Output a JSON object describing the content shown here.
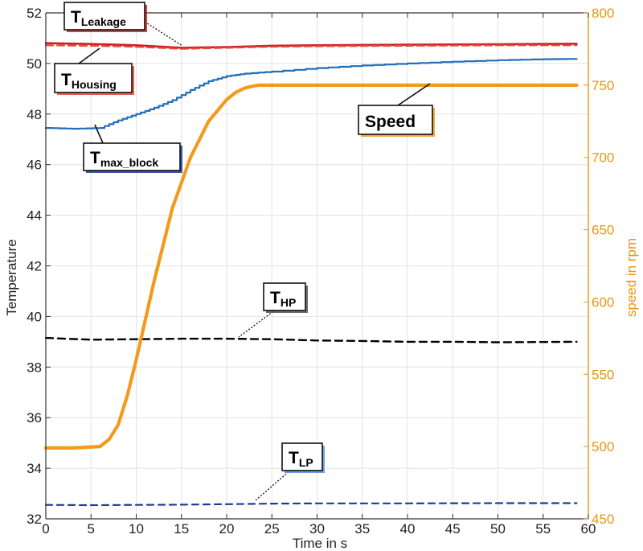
{
  "chart_data": {
    "type": "line",
    "xlabel": "Time in s",
    "ylabel": "Temperature",
    "y2label": "speed in rpm",
    "xlim": [
      0,
      60
    ],
    "ylim": [
      32,
      52
    ],
    "y2lim": [
      450,
      800
    ],
    "xticks": [
      "0",
      "5",
      "10",
      "15",
      "20",
      "25",
      "30",
      "35",
      "40",
      "45",
      "50",
      "55",
      "60"
    ],
    "yticks": [
      "32",
      "34",
      "36",
      "38",
      "40",
      "42",
      "44",
      "46",
      "48",
      "50",
      "52"
    ],
    "y2ticks": [
      "450",
      "500",
      "550",
      "600",
      "650",
      "700",
      "750",
      "800"
    ],
    "grid": true,
    "colors": {
      "leakage": "#cc1f1f",
      "housing": "#e8453c",
      "max_block": "#1f6fb8",
      "hp": "#000000",
      "lp": "#1f3a9a",
      "speed": "#f39a1c",
      "speed_axis": "#e8960f"
    },
    "series": [
      {
        "key": "leakage",
        "axis": "left",
        "style": "solid",
        "x": [
          0,
          5,
          10,
          15,
          20,
          25,
          30,
          40,
          50,
          58.7
        ],
        "y": [
          50.8,
          50.77,
          50.72,
          50.62,
          50.65,
          50.7,
          50.72,
          50.74,
          50.76,
          50.78
        ]
      },
      {
        "key": "housing",
        "axis": "left",
        "style": "dashed",
        "x": [
          0,
          5,
          10,
          15,
          20,
          25,
          30,
          40,
          50,
          58.7
        ],
        "y": [
          50.72,
          50.7,
          50.66,
          50.58,
          50.62,
          50.66,
          50.68,
          50.7,
          50.72,
          50.72
        ]
      },
      {
        "key": "max_block",
        "axis": "left",
        "style": "solid",
        "x": [
          0,
          3,
          6,
          8,
          10,
          12,
          14,
          16,
          18,
          20,
          22,
          25,
          30,
          35,
          40,
          45,
          50,
          55,
          58.7
        ],
        "y": [
          47.45,
          47.42,
          47.45,
          47.75,
          48.0,
          48.25,
          48.55,
          48.95,
          49.3,
          49.5,
          49.6,
          49.68,
          49.82,
          49.92,
          50.0,
          50.07,
          50.13,
          50.17,
          50.18
        ]
      },
      {
        "key": "hp",
        "axis": "left",
        "style": "dashed",
        "x": [
          0,
          5,
          10,
          15,
          20,
          25,
          30,
          35,
          40,
          45,
          50,
          58.7
        ],
        "y": [
          39.15,
          39.08,
          39.1,
          39.12,
          39.12,
          39.1,
          39.05,
          39.03,
          39.0,
          39.0,
          38.98,
          39.0
        ]
      },
      {
        "key": "lp",
        "axis": "left",
        "style": "dashed",
        "x": [
          0,
          5,
          10,
          15,
          20,
          25,
          30,
          40,
          50,
          58.7
        ],
        "y": [
          32.55,
          32.54,
          32.55,
          32.56,
          32.58,
          32.6,
          32.61,
          32.61,
          32.62,
          32.62
        ]
      },
      {
        "key": "speed",
        "axis": "right",
        "style": "solid",
        "x": [
          0,
          3,
          6,
          7,
          8,
          9,
          10,
          12,
          14,
          16,
          18,
          20,
          21,
          22,
          23,
          23.5,
          24,
          25,
          30,
          40,
          50,
          58.7
        ],
        "y": [
          499,
          499,
          500,
          505,
          515,
          535,
          560,
          615,
          665,
          700,
          725,
          740,
          745,
          748,
          749.5,
          750,
          750,
          750,
          750,
          750,
          750,
          750
        ]
      }
    ],
    "annotations": [
      {
        "key": "leakage",
        "main": "T",
        "sub": "Leakage",
        "border": "#cc1f1f"
      },
      {
        "key": "housing",
        "main": "T",
        "sub": "Housing",
        "border": "#e8453c"
      },
      {
        "key": "max_block",
        "main": "T",
        "sub": "max_block",
        "border": "#1f3a9a"
      },
      {
        "key": "speed",
        "main": "Speed",
        "sub": "",
        "border": "#f39a1c"
      },
      {
        "key": "hp",
        "main": "T",
        "sub": "HP",
        "border": "#555555"
      },
      {
        "key": "lp",
        "main": "T",
        "sub": "LP",
        "border": "#5b8fd6"
      }
    ]
  }
}
